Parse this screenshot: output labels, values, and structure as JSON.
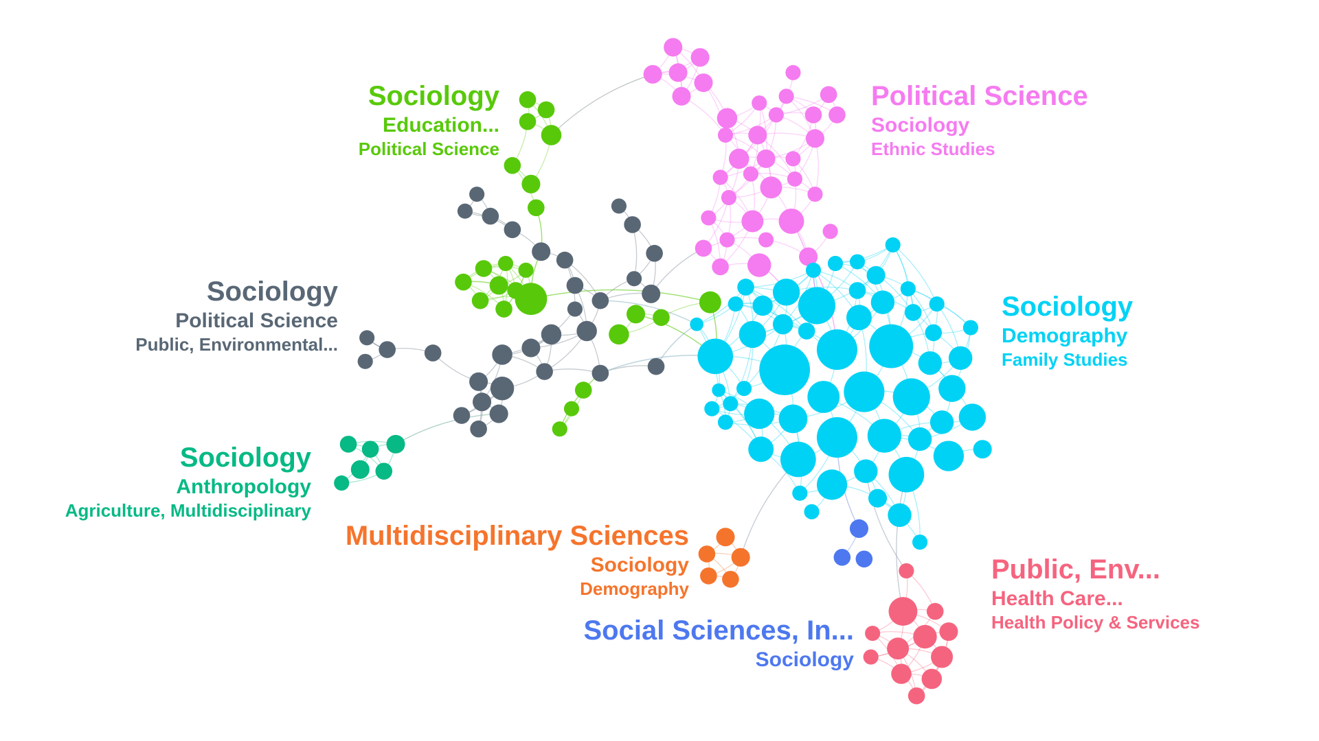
{
  "clusters": {
    "sociology_education": {
      "color": "#58c90a",
      "line1": "Sociology",
      "line2": "Education...",
      "line3": "Political Science"
    },
    "political_science": {
      "color": "#f57bf0",
      "line1": "Political Science",
      "line2": "Sociology",
      "line3": "Ethnic Studies"
    },
    "sociology_political": {
      "color": "#596775",
      "line1": "Sociology",
      "line2": "Political Science",
      "line3": "Public, Environmental..."
    },
    "sociology_demography": {
      "color": "#00d2f5",
      "line1": "Sociology",
      "line2": "Demography",
      "line3": "Family Studies"
    },
    "sociology_anthropology": {
      "color": "#06b985",
      "line1": "Sociology",
      "line2": "Anthropology",
      "line3": "Agriculture, Multidisciplinary"
    },
    "multidisciplinary": {
      "color": "#f5742c",
      "line1": "Multidisciplinary Sciences",
      "line2": "Sociology",
      "line3": "Demography"
    },
    "social_sciences": {
      "color": "#4d78ef",
      "line1": "Social Sciences, In...",
      "line2": "Sociology"
    },
    "public_env": {
      "color": "#f5647f",
      "line1": "Public, Env...",
      "line2": "Health Care...",
      "line3": "Health Policy & Services"
    }
  }
}
